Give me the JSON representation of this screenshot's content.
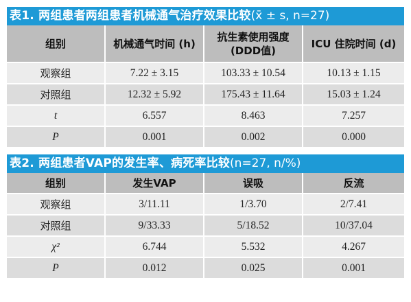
{
  "table1": {
    "title": "表1. 两组患者两组患者机械通气治疗效果比较",
    "title_params": "(x̄ ± s, n=27)",
    "headers": [
      "组别",
      "机械通气时间 (h)",
      "抗生素使用强度\n(DDD值)",
      "ICU 住院时间 (d)"
    ],
    "rows": [
      {
        "label": "观察组",
        "values": [
          "7.22 ± 3.15",
          "103.33 ± 10.54",
          "10.13 ± 1.15"
        ]
      },
      {
        "label": "对照组",
        "values": [
          "12.32 ± 5.92",
          "175.43 ± 11.64",
          "15.03 ± 1.24"
        ]
      },
      {
        "label": "t",
        "values": [
          "6.557",
          "8.463",
          "7.257"
        ]
      },
      {
        "label": "P",
        "values": [
          "0.001",
          "0.002",
          "0.000"
        ]
      }
    ]
  },
  "table2": {
    "title": "表2. 两组患者VAP的发生率、病死率比较",
    "title_params": "(n=27, n/%)",
    "headers": [
      "组别",
      "发生VAP",
      "误吸",
      "反流"
    ],
    "rows": [
      {
        "label": "观察组",
        "values": [
          "3/11.11",
          "1/3.70",
          "2/7.41"
        ]
      },
      {
        "label": "对照组",
        "values": [
          "9/33.33",
          "5/18.52",
          "10/37.04"
        ]
      },
      {
        "label": "χ²",
        "values": [
          "6.744",
          "5.532",
          "4.267"
        ]
      },
      {
        "label": "P",
        "values": [
          "0.012",
          "0.025",
          "0.001"
        ]
      }
    ]
  },
  "colors": {
    "title_bar": "#1e9ad6",
    "header_bg": "#bdbdbd",
    "row_light": "#ececec",
    "row_dark": "#dcdcdc"
  }
}
